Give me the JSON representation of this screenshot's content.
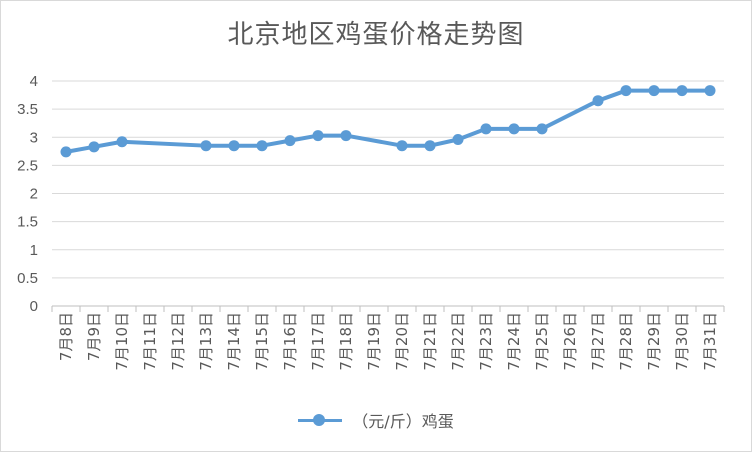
{
  "chart_data": {
    "type": "line",
    "title": "北京地区鸡蛋价格走势图",
    "categories": [
      "7月8日",
      "7月9日",
      "7月10日",
      "7月11日",
      "7月12日",
      "7月13日",
      "7月14日",
      "7月15日",
      "7月16日",
      "7月17日",
      "7月18日",
      "7月19日",
      "7月20日",
      "7月21日",
      "7月22日",
      "7月23日",
      "7月24日",
      "7月25日",
      "7月26日",
      "7月27日",
      "7月28日",
      "7月29日",
      "7月30日",
      "7月31日"
    ],
    "series": [
      {
        "name": "（元/斤）鸡蛋",
        "color": "#5b9bd5",
        "values": [
          2.74,
          2.83,
          2.92,
          null,
          null,
          2.85,
          2.85,
          2.85,
          2.94,
          3.03,
          3.03,
          null,
          2.85,
          2.85,
          2.96,
          3.15,
          3.15,
          3.15,
          null,
          3.65,
          3.83,
          3.83,
          3.83,
          3.83
        ]
      }
    ],
    "yticks": [
      "0",
      "0.5",
      "1",
      "1.5",
      "2",
      "2.5",
      "3",
      "3.5",
      "4"
    ],
    "ylim": [
      0,
      4
    ],
    "grid": true,
    "legend_position": "bottom"
  }
}
